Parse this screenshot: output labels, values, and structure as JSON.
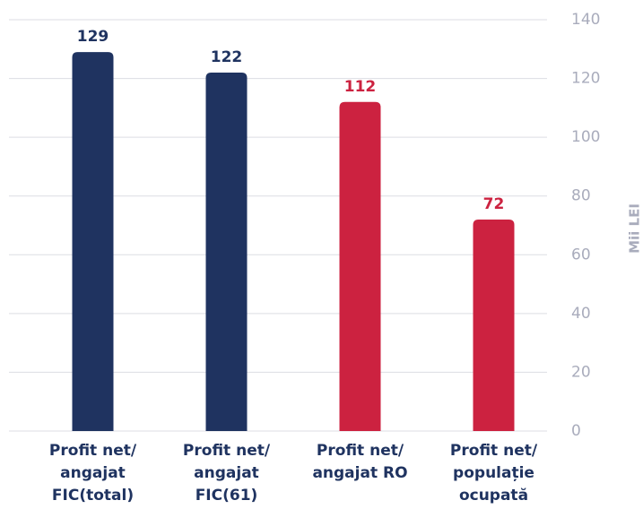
{
  "chart_data": {
    "type": "bar",
    "categories": [
      [
        "Profit net/",
        "angajat",
        "FIC(total)"
      ],
      [
        "Profit net/",
        "angajat",
        "FIC(61)"
      ],
      [
        "Profit net/",
        "angajat RO"
      ],
      [
        "Profit net/",
        "populație",
        "ocupată"
      ]
    ],
    "values": [
      129,
      122,
      112,
      72
    ],
    "colors": [
      "#1f3360",
      "#1f3360",
      "#cc2240",
      "#cc2240"
    ],
    "y_axis_label": "Mii LEI",
    "ylim": [
      0,
      140
    ],
    "yticks": [
      0,
      20,
      40,
      60,
      80,
      100,
      120,
      140
    ],
    "grid": true
  }
}
